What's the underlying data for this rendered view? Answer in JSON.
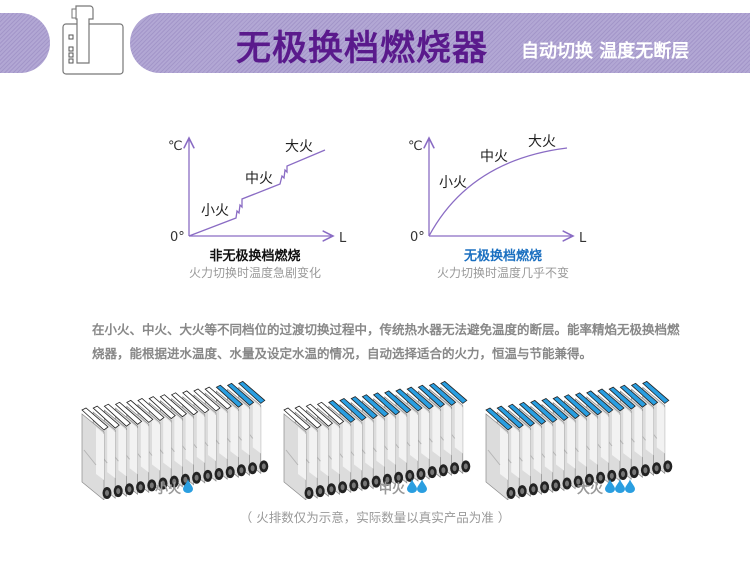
{
  "header": {
    "title": "无极换档燃烧器",
    "subtitle": "自动切换 温度无断层",
    "icon": "gear-shift-icon",
    "title_color": "#5a1a8c"
  },
  "diagrams": [
    {
      "y_label": "℃",
      "x_label": "L",
      "origin_label": "0°",
      "levels": [
        "小火",
        "中火",
        "大火"
      ],
      "title": "非无极换档燃烧",
      "caption": "火力切换时温度急剧变化",
      "title_color": "#111111"
    },
    {
      "y_label": "℃",
      "x_label": "L",
      "origin_label": "0°",
      "levels": [
        "小火",
        "中火",
        "大火"
      ],
      "title": "无极换档燃烧",
      "caption": "火力切换时温度几乎不变",
      "title_color": "#1a6fc0"
    }
  ],
  "description": "在小火、中火、大火等不同档位的过渡切换过程中，传统热水器无法避免温度的断层。能率精焰无极换档燃烧器，能根据进水温度、水量及设定水温的情况，自动选择适合的火力，恒温与节能兼得。",
  "burners": [
    {
      "label": "小火",
      "drops": 1,
      "active_plates": 3,
      "total_plates": 15
    },
    {
      "label": "中火",
      "drops": 2,
      "active_plates": 11,
      "total_plates": 15
    },
    {
      "label": "大火",
      "drops": 3,
      "active_plates": 15,
      "total_plates": 15
    }
  ],
  "colors": {
    "accent": "#2a9ee0",
    "line": "#8a6cc4",
    "band": "#ab9fd0"
  },
  "footnote": "（ 火排数仅为示意，实际数量以真实产品为准 ）"
}
